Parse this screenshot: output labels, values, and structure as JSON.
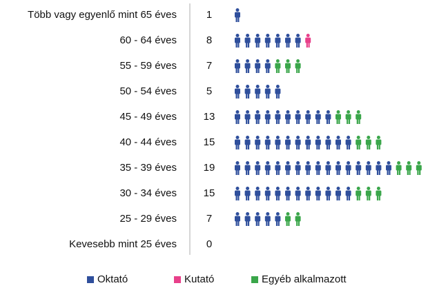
{
  "chart_data": {
    "type": "pictogram",
    "categories": [
      "Több vagy egyenlő mint 65 éves",
      "60 - 64 éves",
      "55 - 59 éves",
      "50 - 54 éves",
      "45 - 49 éves",
      "40 - 44 éves",
      "35 - 39 éves",
      "30 - 34 éves",
      "25 - 29 éves",
      "Kevesebb mint 25 éves"
    ],
    "totals": [
      1,
      8,
      7,
      5,
      13,
      15,
      19,
      15,
      7,
      0
    ],
    "series": [
      {
        "name": "Oktató",
        "color": "#2f4f9c",
        "values": [
          1,
          7,
          4,
          5,
          10,
          12,
          16,
          12,
          5,
          0
        ]
      },
      {
        "name": "Kutató",
        "color": "#e8408a",
        "values": [
          0,
          1,
          0,
          0,
          0,
          0,
          0,
          0,
          0,
          0
        ]
      },
      {
        "name": "Egyéb alkalmazott",
        "color": "#3aa64a",
        "values": [
          0,
          0,
          3,
          0,
          3,
          3,
          3,
          3,
          2,
          0
        ]
      }
    ]
  }
}
